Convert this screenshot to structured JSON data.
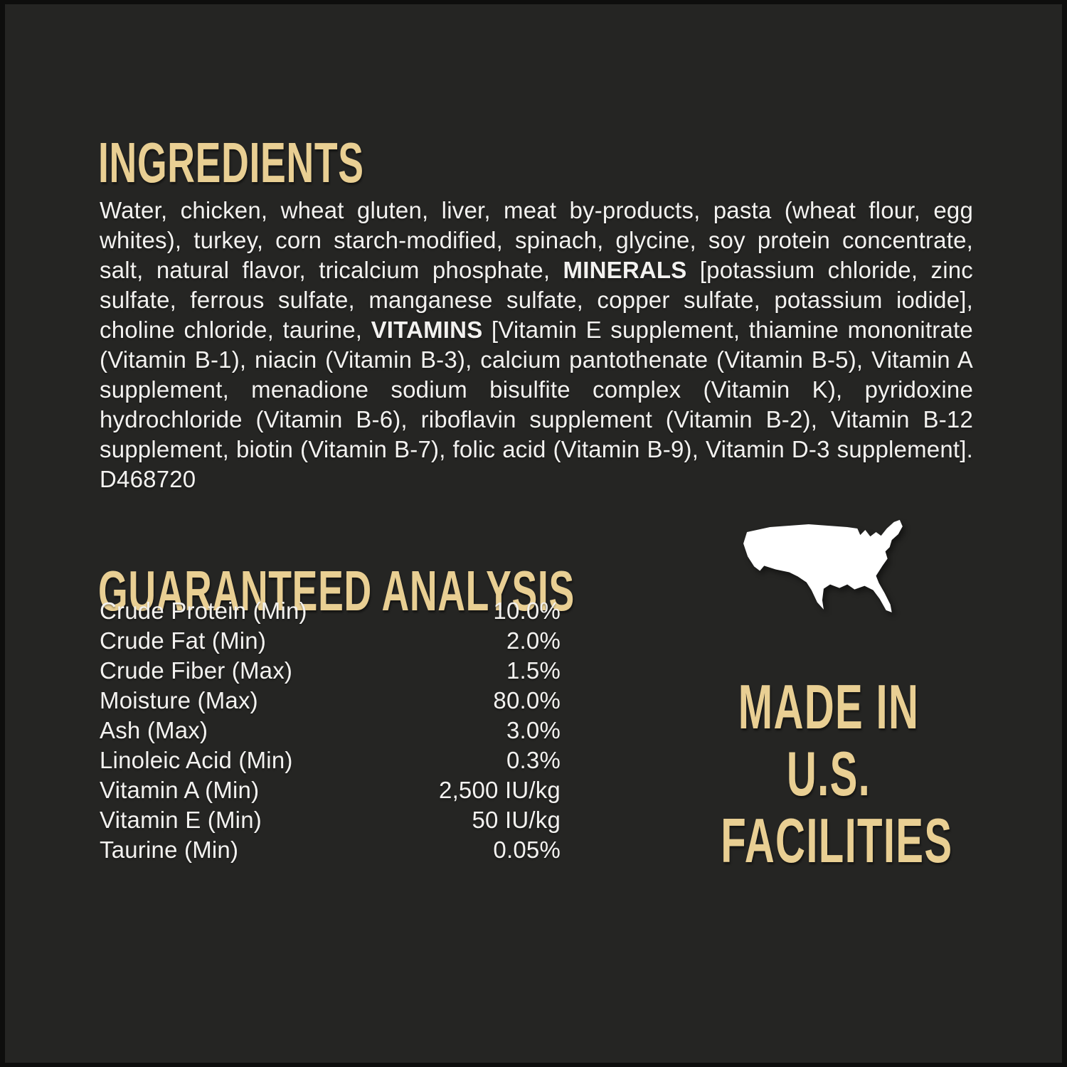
{
  "label": {
    "colors": {
      "background": "#252523",
      "edge": "#0e0e0d",
      "accent_gold": "#e9cf93",
      "body_text": "#f3f2f0",
      "map_fill": "#ffffff"
    },
    "ingredients": {
      "heading": "INGREDIENTS",
      "body": {
        "seg1": "Water, chicken, wheat gluten, liver, meat by-products, pasta (wheat flour, egg whites), turkey, corn starch-modified, spinach, glycine, soy protein concentrate, salt, natural flavor, tricalcium phosphate, ",
        "minerals_label": "MINERALS",
        "seg2": " [potassium chloride, zinc sulfate, ferrous sulfate, manganese sulfate, copper sulfate, potassium iodide], choline chloride, taurine, ",
        "vitamins_label": "VITAMINS",
        "seg3": " [Vitamin E supplement, thiamine mononitrate (Vitamin B-1), niacin (Vitamin B-3), calcium pantothenate (Vitamin B-5), Vitamin A supplement, menadione sodium bisulfite complex (Vitamin K), pyridoxine hydrochloride (Vitamin B-6), riboflavin supplement (Vitamin B-2), Vitamin B-12 supplement, biotin (Vitamin B-7), folic acid (Vitamin B-9), Vitamin D-3 supplement]. D468720"
      }
    },
    "analysis": {
      "heading": "GUARANTEED ANALYSIS",
      "rows": [
        {
          "label": "Crude Protein (Min)",
          "value": "10.0%"
        },
        {
          "label": "Crude Fat (Min)",
          "value": "2.0%"
        },
        {
          "label": "Crude Fiber (Max)",
          "value": "1.5%"
        },
        {
          "label": "Moisture (Max)",
          "value": "80.0%"
        },
        {
          "label": "Ash (Max)",
          "value": "3.0%"
        },
        {
          "label": "Linoleic Acid (Min)",
          "value": "0.3%"
        },
        {
          "label": "Vitamin A (Min)",
          "value": "2,500 IU/kg"
        },
        {
          "label": "Vitamin E (Min)",
          "value": "50 IU/kg"
        },
        {
          "label": "Taurine (Min)",
          "value": "0.05%"
        }
      ]
    },
    "origin": {
      "map_icon": "usa-map-silhouette",
      "lines": [
        "MADE IN",
        "U.S.",
        "FACILITIES"
      ]
    }
  }
}
